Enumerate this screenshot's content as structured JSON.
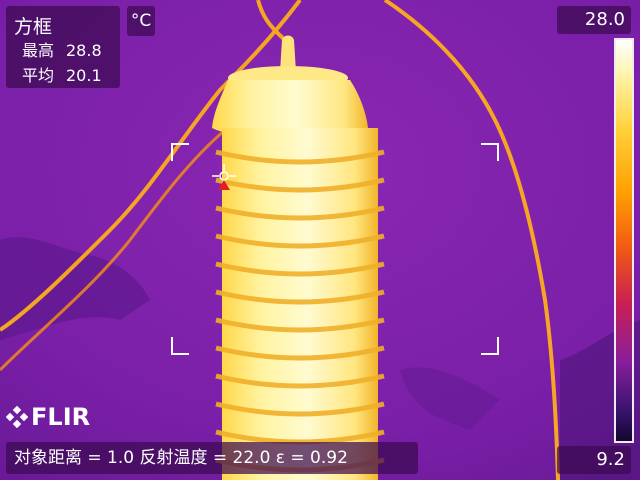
{
  "measurement": {
    "title": "方框",
    "max_label": "最高",
    "max_value": "28.8",
    "avg_label": "平均",
    "avg_value": "20.1"
  },
  "unit": "°C",
  "scale": {
    "max": "28.0",
    "min": "9.2"
  },
  "parameters": {
    "text": "对象距离 = 1.0  反射温度 = 22.0  ε = 0.92"
  },
  "brand": "FLIR",
  "colors": {
    "background": "#7a1fa8",
    "hot": "#fff7a8",
    "warm": "#f5a21a",
    "spot_marker": "#e02020"
  }
}
